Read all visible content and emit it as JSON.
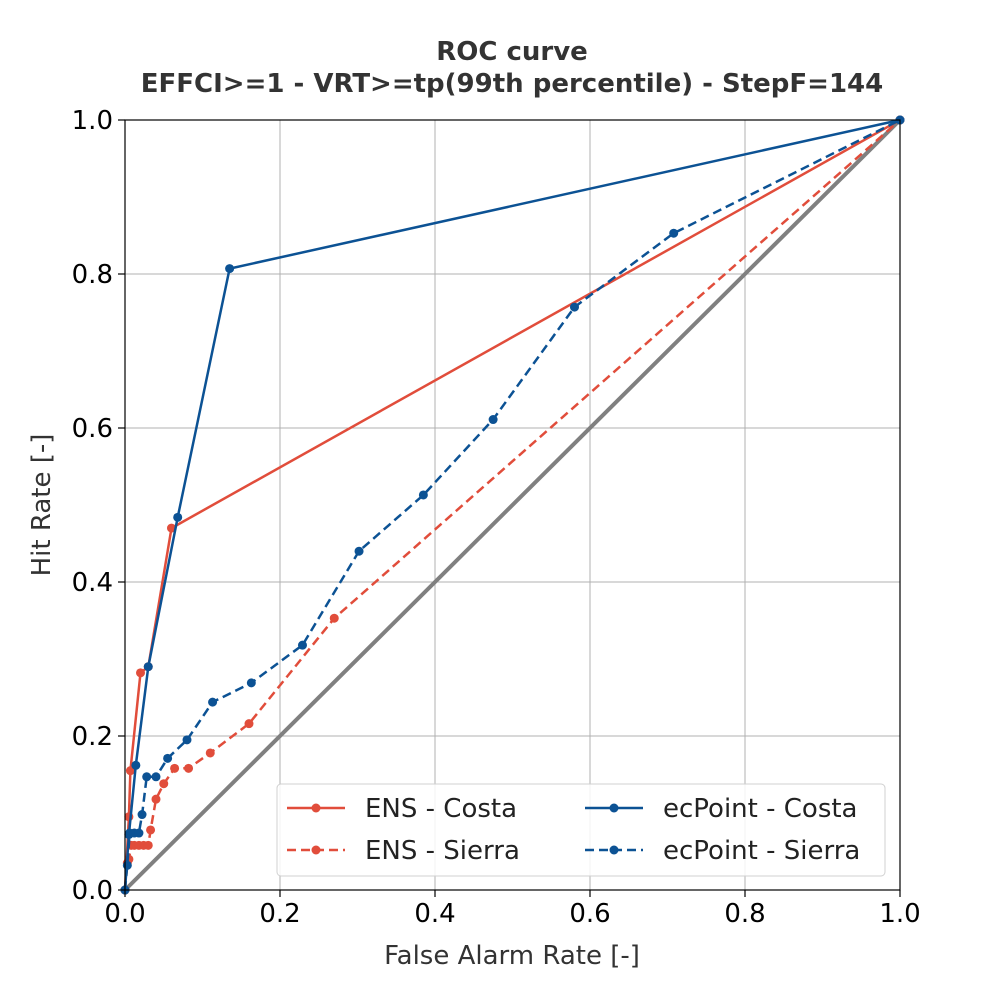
{
  "chart_data": {
    "type": "line",
    "title": "ROC curve",
    "subtitle": "EFFCI>=1 - VRT>=tp(99th percentile) - StepF=144",
    "xlabel": "False Alarm Rate [-]",
    "ylabel": "Hit Rate [-]",
    "xlim": [
      0,
      1
    ],
    "ylim": [
      0,
      1
    ],
    "xticks": [
      "0.0",
      "0.2",
      "0.4",
      "0.6",
      "0.8",
      "1.0"
    ],
    "yticks": [
      "0.0",
      "0.2",
      "0.4",
      "0.6",
      "0.8",
      "1.0"
    ],
    "grid": true,
    "legend_position": "lower-right",
    "reference_line": {
      "x": [
        0,
        1
      ],
      "y": [
        0,
        1
      ],
      "color": "#808080"
    },
    "series": [
      {
        "name": "ENS - Costa",
        "color": "#e14d3b",
        "style": "solid",
        "points": [
          [
            0,
            0
          ],
          [
            0.005,
            0.095
          ],
          [
            0.007,
            0.155
          ],
          [
            0.02,
            0.282
          ],
          [
            0.03,
            0.29
          ],
          [
            0.06,
            0.47
          ],
          [
            1,
            1
          ]
        ]
      },
      {
        "name": "ENS - Sierra",
        "color": "#e14d3b",
        "style": "dashed",
        "points": [
          [
            0,
            0
          ],
          [
            0.003,
            0.035
          ],
          [
            0.005,
            0.04
          ],
          [
            0.008,
            0.058
          ],
          [
            0.012,
            0.058
          ],
          [
            0.018,
            0.058
          ],
          [
            0.024,
            0.058
          ],
          [
            0.03,
            0.058
          ],
          [
            0.033,
            0.078
          ],
          [
            0.04,
            0.118
          ],
          [
            0.05,
            0.138
          ],
          [
            0.064,
            0.158
          ],
          [
            0.082,
            0.158
          ],
          [
            0.11,
            0.178
          ],
          [
            0.16,
            0.216
          ],
          [
            0.27,
            0.353
          ],
          [
            1,
            1
          ]
        ]
      },
      {
        "name": "ecPoint - Costa",
        "color": "#0c5294",
        "style": "solid",
        "points": [
          [
            0,
            0
          ],
          [
            0.005,
            0.072
          ],
          [
            0.014,
            0.162
          ],
          [
            0.03,
            0.29
          ],
          [
            0.068,
            0.484
          ],
          [
            0.135,
            0.807
          ],
          [
            1,
            1
          ]
        ]
      },
      {
        "name": "ecPoint - Sierra",
        "color": "#0c5294",
        "style": "dashed",
        "points": [
          [
            0,
            0
          ],
          [
            0.003,
            0.032
          ],
          [
            0.006,
            0.074
          ],
          [
            0.012,
            0.074
          ],
          [
            0.018,
            0.074
          ],
          [
            0.022,
            0.098
          ],
          [
            0.028,
            0.147
          ],
          [
            0.04,
            0.147
          ],
          [
            0.055,
            0.171
          ],
          [
            0.08,
            0.195
          ],
          [
            0.113,
            0.244
          ],
          [
            0.163,
            0.269
          ],
          [
            0.229,
            0.318
          ],
          [
            0.302,
            0.44
          ],
          [
            0.385,
            0.513
          ],
          [
            0.475,
            0.611
          ],
          [
            0.58,
            0.757
          ],
          [
            0.708,
            0.853
          ],
          [
            1,
            1
          ]
        ]
      }
    ]
  }
}
